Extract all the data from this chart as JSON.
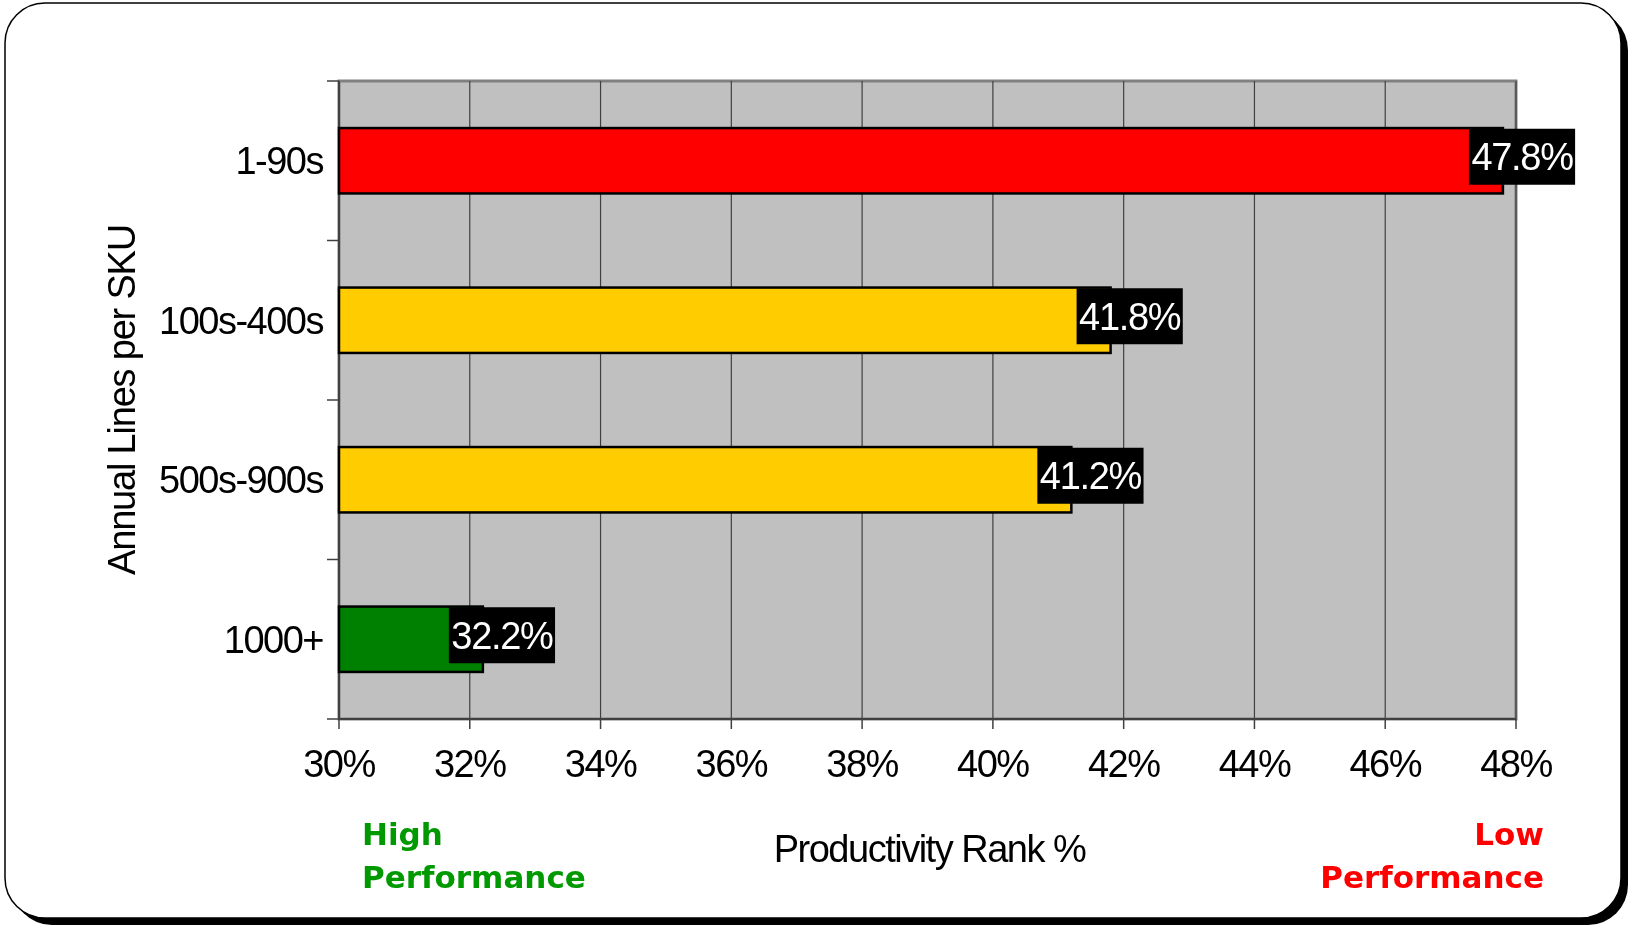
{
  "chart_data": {
    "type": "bar",
    "orientation": "horizontal",
    "categories": [
      "1-90s",
      "100s-400s",
      "500s-900s",
      "1000+"
    ],
    "values": [
      47.8,
      41.8,
      41.2,
      32.2
    ],
    "colors": [
      "#ff0000",
      "#ffcc00",
      "#ffcc00",
      "#008000"
    ],
    "value_labels": [
      "47.8%",
      "41.8%",
      "41.2%",
      "32.2%"
    ],
    "xlim": [
      30,
      48
    ],
    "xticks": [
      {
        "value": 30,
        "label": "30%"
      },
      {
        "value": 32,
        "label": "32%"
      },
      {
        "value": 34,
        "label": "34%"
      },
      {
        "value": 36,
        "label": "36%"
      },
      {
        "value": 38,
        "label": "38%"
      },
      {
        "value": 40,
        "label": "40%"
      },
      {
        "value": 42,
        "label": "42%"
      },
      {
        "value": 44,
        "label": "44%"
      },
      {
        "value": 46,
        "label": "46%"
      },
      {
        "value": 48,
        "label": "48%"
      }
    ],
    "xlabel": "Productivity Rank %",
    "ylabel": "Annual Lines per SKU",
    "grid": "x",
    "annotations": [
      "High Performance",
      "Low Performance"
    ]
  }
}
